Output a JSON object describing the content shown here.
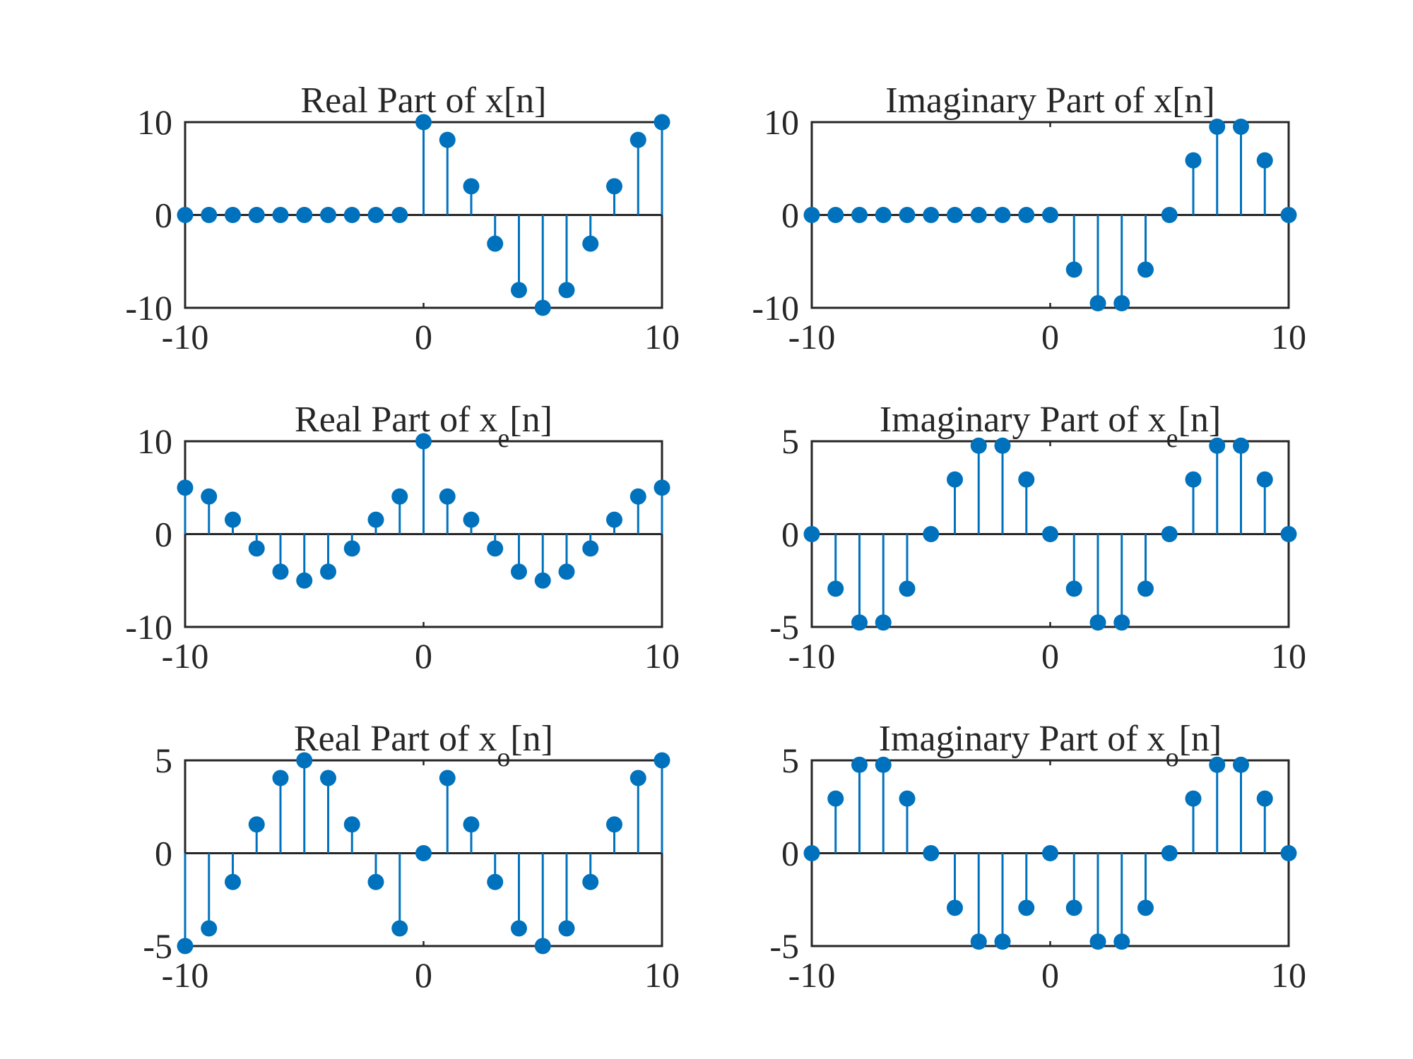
{
  "chart_data": [
    {
      "type": "stem",
      "title": "Real Part of x[n]",
      "title_main": "Real Part of x",
      "title_sub": "",
      "title_tail": "[n]",
      "xlim": [
        -10,
        10
      ],
      "ylim": [
        -10,
        10
      ],
      "xticks": [
        -10,
        0,
        10
      ],
      "yticks": [
        -10,
        0,
        10
      ],
      "xtick_labels": [
        "-10",
        "0",
        "10"
      ],
      "ytick_labels": [
        "-10",
        "0",
        "10"
      ],
      "x": [
        -10,
        -9,
        -8,
        -7,
        -6,
        -5,
        -4,
        -3,
        -2,
        -1,
        0,
        1,
        2,
        3,
        4,
        5,
        6,
        7,
        8,
        9,
        10
      ],
      "values": [
        0,
        0,
        0,
        0,
        0,
        0,
        0,
        0,
        0,
        0,
        10,
        8.09,
        3.09,
        -3.09,
        -8.09,
        -10,
        -8.09,
        -3.09,
        3.09,
        8.09,
        10
      ]
    },
    {
      "type": "stem",
      "title": "Imaginary Part of x[n]",
      "title_main": "Imaginary Part of x",
      "title_sub": "",
      "title_tail": "[n]",
      "xlim": [
        -10,
        10
      ],
      "ylim": [
        -10,
        10
      ],
      "xticks": [
        -10,
        0,
        10
      ],
      "yticks": [
        -10,
        0,
        10
      ],
      "xtick_labels": [
        "-10",
        "0",
        "10"
      ],
      "ytick_labels": [
        "-10",
        "0",
        "10"
      ],
      "x": [
        -10,
        -9,
        -8,
        -7,
        -6,
        -5,
        -4,
        -3,
        -2,
        -1,
        0,
        1,
        2,
        3,
        4,
        5,
        6,
        7,
        8,
        9,
        10
      ],
      "values": [
        0,
        0,
        0,
        0,
        0,
        0,
        0,
        0,
        0,
        0,
        0,
        -5.88,
        -9.51,
        -9.51,
        -5.88,
        0,
        5.88,
        9.51,
        9.51,
        5.88,
        0
      ]
    },
    {
      "type": "stem",
      "title": "Real Part of xe[n]",
      "title_main": "Real Part of x",
      "title_sub": "e",
      "title_tail": "[n]",
      "xlim": [
        -10,
        10
      ],
      "ylim": [
        -10,
        10
      ],
      "xticks": [
        -10,
        0,
        10
      ],
      "yticks": [
        -10,
        0,
        10
      ],
      "xtick_labels": [
        "-10",
        "0",
        "10"
      ],
      "ytick_labels": [
        "-10",
        "0",
        "10"
      ],
      "x": [
        -10,
        -9,
        -8,
        -7,
        -6,
        -5,
        -4,
        -3,
        -2,
        -1,
        0,
        1,
        2,
        3,
        4,
        5,
        6,
        7,
        8,
        9,
        10
      ],
      "values": [
        5,
        4.05,
        1.55,
        -1.55,
        -4.05,
        -5,
        -4.05,
        -1.55,
        1.55,
        4.05,
        10,
        4.05,
        1.55,
        -1.55,
        -4.05,
        -5,
        -4.05,
        -1.55,
        1.55,
        4.05,
        5
      ]
    },
    {
      "type": "stem",
      "title": "Imaginary Part of xe[n]",
      "title_main": "Imaginary Part of x",
      "title_sub": "e",
      "title_tail": "[n]",
      "xlim": [
        -10,
        10
      ],
      "ylim": [
        -5,
        5
      ],
      "xticks": [
        -10,
        0,
        10
      ],
      "yticks": [
        -5,
        0,
        5
      ],
      "xtick_labels": [
        "-10",
        "0",
        "10"
      ],
      "ytick_labels": [
        "-5",
        "0",
        "5"
      ],
      "x": [
        -10,
        -9,
        -8,
        -7,
        -6,
        -5,
        -4,
        -3,
        -2,
        -1,
        0,
        1,
        2,
        3,
        4,
        5,
        6,
        7,
        8,
        9,
        10
      ],
      "values": [
        0,
        -2.94,
        -4.76,
        -4.76,
        -2.94,
        0,
        2.94,
        4.76,
        4.76,
        2.94,
        0,
        -2.94,
        -4.76,
        -4.76,
        -2.94,
        0,
        2.94,
        4.76,
        4.76,
        2.94,
        0
      ]
    },
    {
      "type": "stem",
      "title": "Real Part of xo[n]",
      "title_main": "Real Part of x",
      "title_sub": "o",
      "title_tail": "[n]",
      "xlim": [
        -10,
        10
      ],
      "ylim": [
        -5,
        5
      ],
      "xticks": [
        -10,
        0,
        10
      ],
      "yticks": [
        -5,
        0,
        5
      ],
      "xtick_labels": [
        "-10",
        "0",
        "10"
      ],
      "ytick_labels": [
        "-5",
        "0",
        "5"
      ],
      "x": [
        -10,
        -9,
        -8,
        -7,
        -6,
        -5,
        -4,
        -3,
        -2,
        -1,
        0,
        1,
        2,
        3,
        4,
        5,
        6,
        7,
        8,
        9,
        10
      ],
      "values": [
        -5,
        -4.05,
        -1.55,
        1.55,
        4.05,
        5,
        4.05,
        1.55,
        -1.55,
        -4.05,
        0,
        4.05,
        1.55,
        -1.55,
        -4.05,
        -5,
        -4.05,
        -1.55,
        1.55,
        4.05,
        5
      ]
    },
    {
      "type": "stem",
      "title": "Imaginary Part of xo[n]",
      "title_main": "Imaginary Part of x",
      "title_sub": "o",
      "title_tail": "[n]",
      "xlim": [
        -10,
        10
      ],
      "ylim": [
        -5,
        5
      ],
      "xticks": [
        -10,
        0,
        10
      ],
      "yticks": [
        -5,
        0,
        5
      ],
      "xtick_labels": [
        "-10",
        "0",
        "10"
      ],
      "ytick_labels": [
        "-5",
        "0",
        "5"
      ],
      "x": [
        -10,
        -9,
        -8,
        -7,
        -6,
        -5,
        -4,
        -3,
        -2,
        -1,
        0,
        1,
        2,
        3,
        4,
        5,
        6,
        7,
        8,
        9,
        10
      ],
      "values": [
        0,
        2.94,
        4.76,
        4.76,
        2.94,
        0,
        -2.94,
        -4.76,
        -4.76,
        -2.94,
        0,
        -2.94,
        -4.76,
        -4.76,
        -2.94,
        0,
        2.94,
        4.76,
        4.76,
        2.94,
        0
      ]
    }
  ],
  "colors": {
    "stem": "#0072BD",
    "axes": "#262626",
    "background": "#ffffff"
  }
}
